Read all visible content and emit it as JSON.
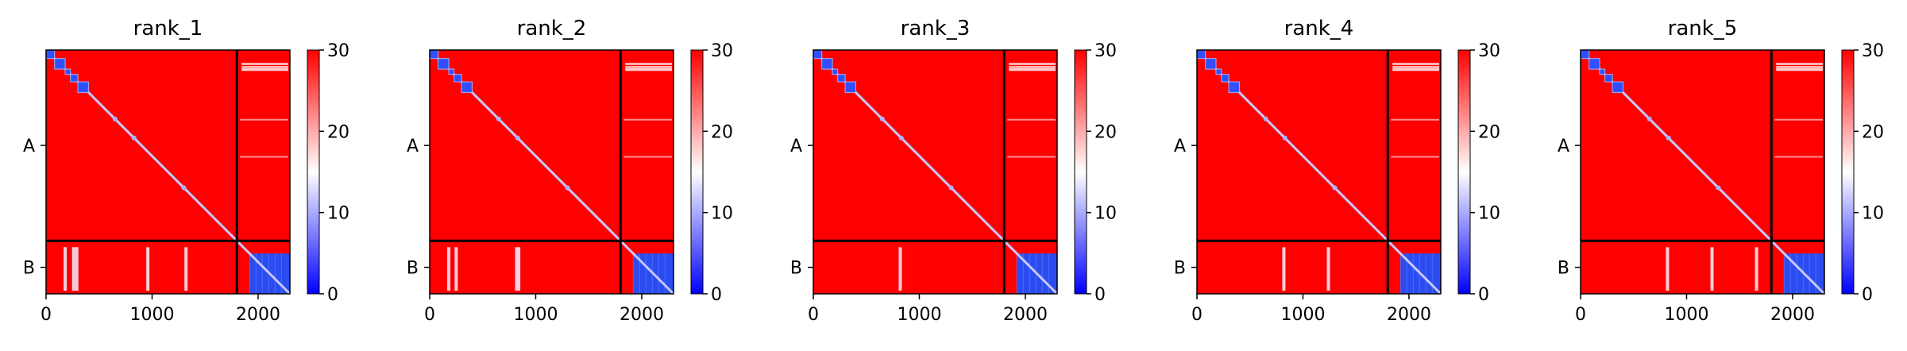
{
  "chart_data": [
    {
      "type": "heatmap",
      "title": "rank_1",
      "x_range": [
        0,
        2300
      ],
      "x_ticks": [
        "0",
        "1000",
        "2000"
      ],
      "y_ticks": [
        "A",
        "B"
      ],
      "colorbar": {
        "min": 0,
        "max": 30,
        "ticks": [
          "0",
          "10",
          "20",
          "30"
        ],
        "colors": [
          "#0000ff",
          "#ffffff",
          "#ff0000"
        ]
      },
      "chain_boundary": 1800,
      "chain_B_end": 2300,
      "background_value": 30,
      "chain_B_block_value": 5,
      "stripe_positions": [
        180,
        260,
        290,
        960,
        1320
      ],
      "diagonal_blocks": [
        [
          0,
          80
        ],
        [
          80,
          180
        ],
        [
          180,
          230
        ],
        [
          230,
          300
        ],
        [
          300,
          400
        ]
      ]
    },
    {
      "type": "heatmap",
      "title": "rank_2",
      "x_range": [
        0,
        2300
      ],
      "x_ticks": [
        "0",
        "1000",
        "2000"
      ],
      "y_ticks": [
        "A",
        "B"
      ],
      "colorbar": {
        "min": 0,
        "max": 30,
        "ticks": [
          "0",
          "10",
          "20",
          "30"
        ],
        "colors": [
          "#0000ff",
          "#ffffff",
          "#ff0000"
        ]
      },
      "chain_boundary": 1800,
      "chain_B_end": 2300,
      "background_value": 30,
      "chain_B_block_value": 5,
      "stripe_positions": [
        180,
        250,
        820,
        840
      ],
      "diagonal_blocks": [
        [
          0,
          80
        ],
        [
          80,
          180
        ],
        [
          180,
          230
        ],
        [
          230,
          300
        ],
        [
          300,
          400
        ]
      ]
    },
    {
      "type": "heatmap",
      "title": "rank_3",
      "x_range": [
        0,
        2300
      ],
      "x_ticks": [
        "0",
        "1000",
        "2000"
      ],
      "y_ticks": [
        "A",
        "B"
      ],
      "colorbar": {
        "min": 0,
        "max": 30,
        "ticks": [
          "0",
          "10",
          "20",
          "30"
        ],
        "colors": [
          "#0000ff",
          "#ffffff",
          "#ff0000"
        ]
      },
      "chain_boundary": 1800,
      "chain_B_end": 2300,
      "background_value": 30,
      "chain_B_block_value": 5,
      "stripe_positions": [
        820
      ],
      "diagonal_blocks": [
        [
          0,
          80
        ],
        [
          80,
          180
        ],
        [
          180,
          230
        ],
        [
          230,
          300
        ],
        [
          300,
          400
        ]
      ]
    },
    {
      "type": "heatmap",
      "title": "rank_4",
      "x_range": [
        0,
        2300
      ],
      "x_ticks": [
        "0",
        "1000",
        "2000"
      ],
      "y_ticks": [
        "A",
        "B"
      ],
      "colorbar": {
        "min": 0,
        "max": 30,
        "ticks": [
          "0",
          "10",
          "20",
          "30"
        ],
        "colors": [
          "#0000ff",
          "#ffffff",
          "#ff0000"
        ]
      },
      "chain_boundary": 1800,
      "chain_B_end": 2300,
      "background_value": 30,
      "chain_B_block_value": 5,
      "stripe_positions": [
        820,
        1240
      ],
      "diagonal_blocks": [
        [
          0,
          80
        ],
        [
          80,
          180
        ],
        [
          180,
          230
        ],
        [
          230,
          300
        ],
        [
          300,
          400
        ]
      ]
    },
    {
      "type": "heatmap",
      "title": "rank_5",
      "x_range": [
        0,
        2300
      ],
      "x_ticks": [
        "0",
        "1000",
        "2000"
      ],
      "y_ticks": [
        "A",
        "B"
      ],
      "colorbar": {
        "min": 0,
        "max": 30,
        "ticks": [
          "0",
          "10",
          "20",
          "30"
        ],
        "colors": [
          "#0000ff",
          "#ffffff",
          "#ff0000"
        ]
      },
      "chain_boundary": 1800,
      "chain_B_end": 2300,
      "background_value": 30,
      "chain_B_block_value": 5,
      "stripe_positions": [
        820,
        1240,
        1660
      ],
      "diagonal_blocks": [
        [
          0,
          80
        ],
        [
          80,
          180
        ],
        [
          180,
          230
        ],
        [
          230,
          300
        ],
        [
          300,
          400
        ]
      ]
    }
  ]
}
